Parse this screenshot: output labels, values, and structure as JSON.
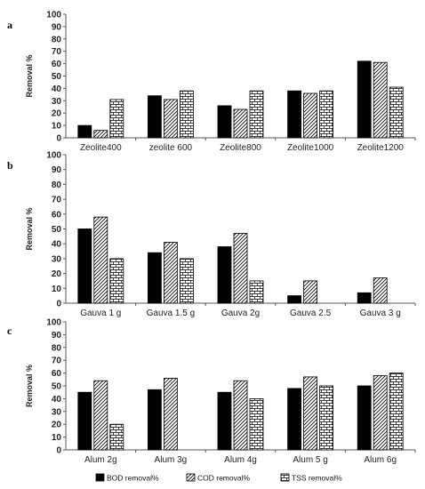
{
  "chart_data": [
    {
      "type": "bar",
      "panel_label": "a",
      "ylabel": "Removal %",
      "ylim": [
        0,
        100
      ],
      "yticks": [
        0,
        10,
        20,
        30,
        40,
        50,
        60,
        70,
        80,
        90,
        100
      ],
      "grid": false,
      "categories": [
        "Zeolite400",
        "zeolite 600",
        "Zeolite800",
        "Zeolite1000",
        "Zeolite1200"
      ],
      "series": [
        {
          "name": "BOD removal%",
          "values": [
            10,
            34,
            26,
            38,
            62
          ]
        },
        {
          "name": "COD removal%",
          "values": [
            6,
            31,
            23,
            36,
            61
          ]
        },
        {
          "name": "TSS removal%",
          "values": [
            31,
            38,
            38,
            38,
            41
          ]
        }
      ]
    },
    {
      "type": "bar",
      "panel_label": "b",
      "ylabel": "Removal %",
      "ylim": [
        0,
        100
      ],
      "yticks": [
        0,
        10,
        20,
        30,
        40,
        50,
        60,
        70,
        80,
        90,
        100
      ],
      "grid": false,
      "categories": [
        "Gauva 1 g",
        "Gauva 1.5 g",
        "Gauva 2g",
        "Gauva 2.5",
        "Gauva 3 g"
      ],
      "series": [
        {
          "name": "BOD removal%",
          "values": [
            50,
            34,
            38,
            5,
            7
          ]
        },
        {
          "name": "COD removal%",
          "values": [
            58,
            41,
            47,
            15,
            17
          ]
        },
        {
          "name": "TSS removal%",
          "values": [
            30,
            30,
            15,
            0,
            0
          ]
        }
      ]
    },
    {
      "type": "bar",
      "panel_label": "c",
      "ylabel": "Removal %",
      "ylim": [
        0,
        100
      ],
      "yticks": [
        0,
        10,
        20,
        30,
        40,
        50,
        60,
        70,
        80,
        90,
        100
      ],
      "grid": false,
      "categories": [
        "Alum 2g",
        "Alum 3g",
        "Alum 4g",
        "Alum 5 g",
        "Alum 6g"
      ],
      "series": [
        {
          "name": "BOD removal%",
          "values": [
            45,
            47,
            45,
            48,
            50
          ]
        },
        {
          "name": "COD removal%",
          "values": [
            54,
            56,
            54,
            57,
            58
          ]
        },
        {
          "name": "TSS removal%",
          "values": [
            20,
            0,
            40,
            50,
            60
          ]
        }
      ]
    }
  ],
  "legend": {
    "placement": "bottom-center",
    "items": [
      {
        "label": "BOD removal%",
        "pattern": "solid-black"
      },
      {
        "label": "COD removal%",
        "pattern": "diagonal-hatch"
      },
      {
        "label": "TSS removal%",
        "pattern": "brick"
      }
    ]
  },
  "colors": {
    "bod": "#000000",
    "outline": "#000000",
    "axis": "#555555",
    "background": "#ffffff"
  }
}
